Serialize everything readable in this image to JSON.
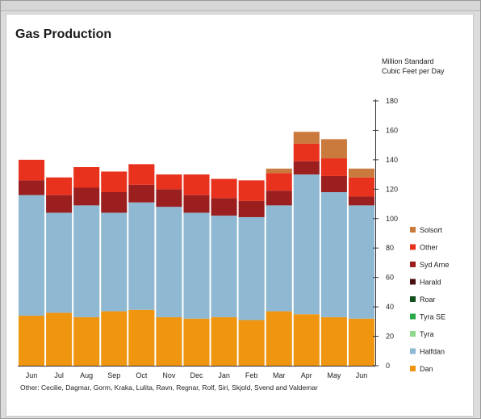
{
  "chart_data": {
    "type": "bar",
    "stacked": true,
    "title": "Gas Production",
    "unit_label": [
      "Million Standard",
      "Cubic Feet per Day"
    ],
    "categories": [
      "Jun",
      "Jul",
      "Aug",
      "Sep",
      "Oct",
      "Nov",
      "Dec",
      "Jan",
      "Feb",
      "Mar",
      "Apr",
      "May",
      "Jun"
    ],
    "ylim": [
      0,
      180
    ],
    "yticks": [
      0,
      20,
      40,
      60,
      80,
      100,
      120,
      140,
      160,
      180
    ],
    "y_axis_side": "right",
    "legend_placement": "right",
    "series": [
      {
        "name": "Dan",
        "color": "#f0950f",
        "values": [
          34,
          36,
          33,
          37,
          38,
          33,
          32,
          33,
          31,
          37,
          35,
          33,
          32
        ]
      },
      {
        "name": "Halfdan",
        "color": "#8fb8d2",
        "values": [
          82,
          68,
          76,
          67,
          73,
          75,
          72,
          69,
          70,
          72,
          95,
          85,
          77
        ]
      },
      {
        "name": "Tyra",
        "color": "#90d890",
        "values": [
          0,
          0,
          0,
          0,
          0,
          0,
          0,
          0,
          0,
          0,
          0,
          0,
          0
        ]
      },
      {
        "name": "Tyra SE",
        "color": "#2aa84a",
        "values": [
          0,
          0,
          0,
          0,
          0,
          0,
          0,
          0,
          0,
          0,
          0,
          0,
          0
        ]
      },
      {
        "name": "Roar",
        "color": "#14501e",
        "values": [
          0,
          0,
          0,
          0,
          0,
          0,
          0,
          0,
          0,
          0,
          0,
          0,
          0
        ]
      },
      {
        "name": "Harald",
        "color": "#4a0f0f",
        "values": [
          0,
          0,
          0,
          0,
          0,
          0,
          0,
          0,
          0,
          0,
          0,
          0,
          0
        ]
      },
      {
        "name": "Syd Arne",
        "color": "#9b1f1f",
        "values": [
          10,
          12,
          12,
          14,
          12,
          12,
          12,
          12,
          11,
          10,
          9,
          11,
          6
        ]
      },
      {
        "name": "Other",
        "color": "#e8321e",
        "values": [
          14,
          12,
          14,
          14,
          14,
          10,
          14,
          13,
          14,
          12,
          12,
          12,
          13
        ]
      },
      {
        "name": "Solsort",
        "color": "#c97a3c",
        "values": [
          0,
          0,
          0,
          0,
          0,
          0,
          0,
          0,
          0,
          3,
          8,
          13,
          6
        ]
      }
    ],
    "legend_order": [
      "Solsort",
      "Other",
      "Syd Arne",
      "Harald",
      "Roar",
      "Tyra SE",
      "Tyra",
      "Halfdan",
      "Dan"
    ]
  },
  "footnote": "Other:  Cecilie, Dagmar, Gorm,  Kraka, Lulita, Ravn, Regnar, Rolf, Siri, Skjold, Svend and Valdemar"
}
